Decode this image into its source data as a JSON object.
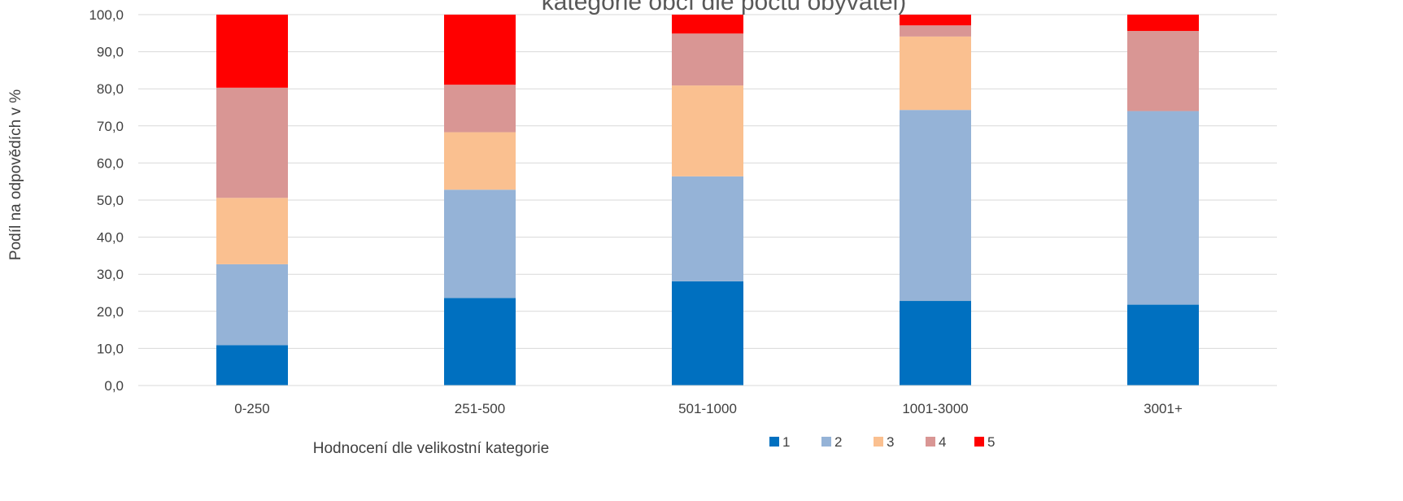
{
  "chart_data": {
    "type": "bar",
    "stacked": true,
    "title": "kategorie obcí dle počtu obyvatel)",
    "xlabel": "Hodnocení dle velikostní kategorie",
    "ylabel": "Podíl na odpovědích v %",
    "ylim": [
      0,
      100
    ],
    "y_ticks": [
      "0,0",
      "10,0",
      "20,0",
      "30,0",
      "40,0",
      "50,0",
      "60,0",
      "70,0",
      "80,0",
      "90,0",
      "100,0"
    ],
    "y_tick_values": [
      0,
      10,
      20,
      30,
      40,
      50,
      60,
      70,
      80,
      90,
      100
    ],
    "grid": true,
    "legend_position": "bottom",
    "categories": [
      "0-250",
      "251-500",
      "501-1000",
      "1001-3000",
      "3001+"
    ],
    "series": [
      {
        "name": "1",
        "color": "#0070C0",
        "values": [
          10.9,
          23.6,
          28.1,
          22.8,
          21.8
        ]
      },
      {
        "name": "2",
        "color": "#95B3D7",
        "values": [
          21.8,
          29.2,
          28.3,
          51.5,
          52.2
        ]
      },
      {
        "name": "3",
        "color": "#FAC090",
        "values": [
          17.9,
          15.5,
          24.5,
          19.8,
          0.0
        ]
      },
      {
        "name": "4",
        "color": "#D99694",
        "values": [
          29.7,
          12.8,
          14.0,
          3.0,
          21.6
        ]
      },
      {
        "name": "5",
        "color": "#FF0000",
        "values": [
          19.7,
          18.9,
          5.1,
          2.9,
          4.4
        ]
      }
    ]
  }
}
